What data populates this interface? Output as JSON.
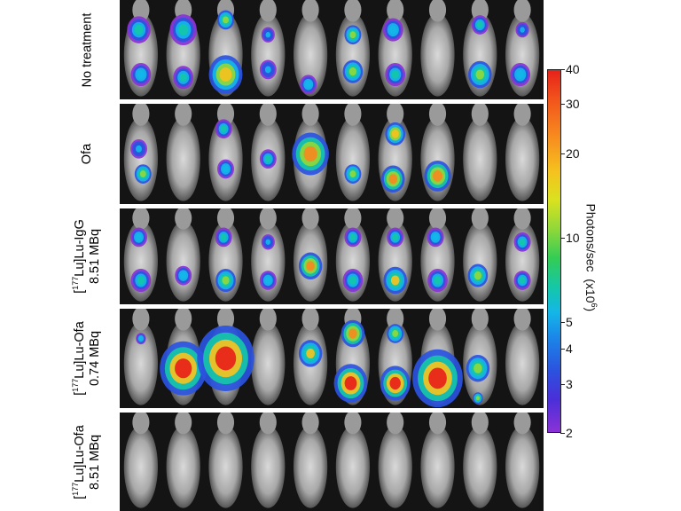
{
  "figure": {
    "rows": [
      {
        "label_html": "No treatment",
        "mice": 10
      },
      {
        "label_html": "Ofa",
        "mice": 10
      },
      {
        "label_html": "[<sup>177</sup>Lu]Lu-IgG<br>8.51 MBq",
        "mice": 10
      },
      {
        "label_html": "[<sup>177</sup>Lu]Lu-Ofa<br>0.74 MBq",
        "mice": 10
      },
      {
        "label_html": "[<sup>177</sup>Lu]Lu-Ofa<br>8.51 MBq",
        "mice": 10
      }
    ]
  },
  "colorbar": {
    "title_main": "Photons/sec",
    "title_unit_prefix": "(x10",
    "title_unit_exp": "6",
    "title_unit_suffix": ")",
    "scale": "log",
    "min": 2,
    "max": 40,
    "ticks": [
      "40",
      "30",
      "20",
      "10",
      "5",
      "4",
      "3",
      "2"
    ],
    "colors": [
      "#e8211a",
      "#f7891f",
      "#f5c21f",
      "#8fd83a",
      "#15c7a8",
      "#14b6e8",
      "#2b52df",
      "#8a32d6"
    ]
  }
}
